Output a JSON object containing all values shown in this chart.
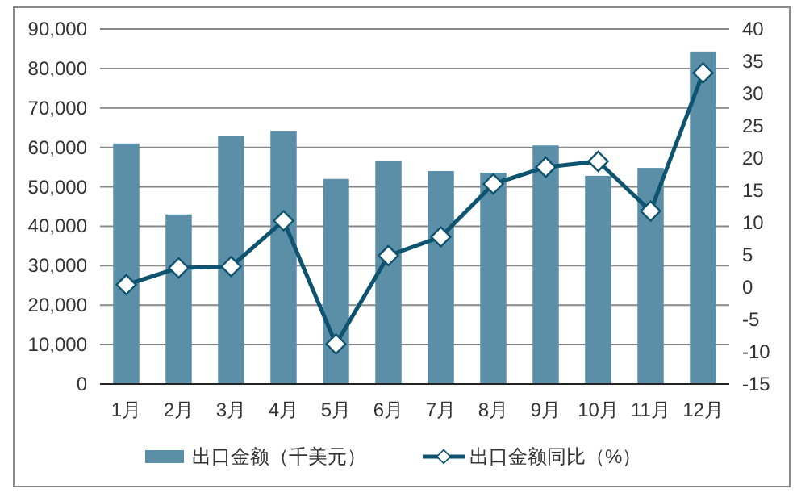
{
  "chart_data": {
    "type": "bar",
    "categories": [
      "1月",
      "2月",
      "3月",
      "4月",
      "5月",
      "6月",
      "7月",
      "8月",
      "9月",
      "10月",
      "11月",
      "12月"
    ],
    "series": [
      {
        "name": "出口金额（千美元）",
        "color": "#5b8fa8",
        "values": [
          61000,
          43000,
          63000,
          64200,
          52000,
          56500,
          54000,
          53600,
          60500,
          52800,
          54800,
          84300
        ]
      },
      {
        "name": "出口金额同比（%）",
        "type": "line",
        "axis": "y2",
        "marker": "diamond",
        "color": "#0e5470",
        "values": [
          0.4,
          3,
          3.2,
          10.3,
          -8.8,
          4.9,
          7.8,
          16,
          18.6,
          19.5,
          11.8,
          33.2
        ]
      }
    ],
    "ylim": [
      0,
      90000
    ],
    "yticks": [
      0,
      {
        "value": 10000,
        "label": "10,000"
      },
      {
        "value": 20000,
        "label": "20,000"
      },
      {
        "value": 30000,
        "label": "30,000"
      },
      {
        "value": 40000,
        "label": "40,000"
      },
      {
        "value": 50000,
        "label": "50,000"
      },
      {
        "value": 60000,
        "label": "60,000"
      },
      {
        "value": 70000,
        "label": "70,000"
      },
      {
        "value": 80000,
        "label": "80,000"
      },
      {
        "value": 90000,
        "label": "90,000"
      }
    ],
    "y2lim": [
      -15,
      40
    ],
    "y2ticks": [
      -15,
      -10,
      -5,
      0,
      5,
      10,
      15,
      20,
      25,
      30,
      35,
      40
    ],
    "grid": "y",
    "legend": "bottom"
  }
}
